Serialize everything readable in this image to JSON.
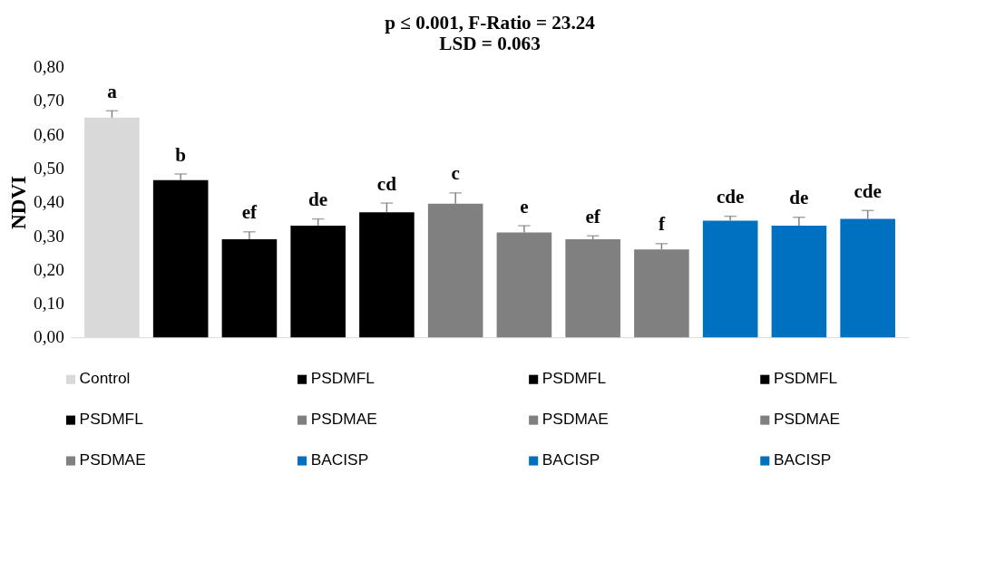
{
  "chart_data": {
    "type": "bar",
    "title": [
      "p ≤ 0.001, F-Ratio = 23.24",
      "LSD = 0.063"
    ],
    "ylabel": "NDVI",
    "categories": [
      null,
      null,
      null,
      null,
      null,
      null,
      null,
      null,
      null,
      null,
      null,
      null
    ],
    "series": [
      {
        "name": "Control",
        "color": "#d9d9d9",
        "values": [
          0.65,
          null,
          null,
          null,
          null,
          null,
          null,
          null,
          null,
          null,
          null,
          null
        ],
        "errors": [
          [
            0.65,
            0.67
          ],
          null,
          null,
          null,
          null,
          null,
          null,
          null,
          null,
          null,
          null,
          null
        ],
        "value_labels": [
          "a",
          null,
          null,
          null,
          null,
          null,
          null,
          null,
          null,
          null,
          null,
          null
        ]
      },
      {
        "name": "PSDMFL",
        "color": "#000000",
        "values": [
          null,
          0.465,
          null,
          null,
          null,
          null,
          null,
          null,
          null,
          null,
          null,
          null
        ],
        "errors": [
          null,
          [
            0.465,
            0.483
          ],
          null,
          null,
          null,
          null,
          null,
          null,
          null,
          null,
          null,
          null
        ],
        "value_labels": [
          null,
          "b",
          null,
          null,
          null,
          null,
          null,
          null,
          null,
          null,
          null,
          null
        ]
      },
      {
        "name": "PSDMFL",
        "color": "#000000",
        "values": [
          null,
          null,
          0.29,
          null,
          null,
          null,
          null,
          null,
          null,
          null,
          null,
          null
        ],
        "errors": [
          null,
          null,
          [
            0.29,
            0.312
          ],
          null,
          null,
          null,
          null,
          null,
          null,
          null,
          null,
          null
        ],
        "value_labels": [
          null,
          null,
          "ef",
          null,
          null,
          null,
          null,
          null,
          null,
          null,
          null,
          null
        ]
      },
      {
        "name": "PSDMFL",
        "color": "#000000",
        "values": [
          null,
          null,
          null,
          0.33,
          null,
          null,
          null,
          null,
          null,
          null,
          null,
          null
        ],
        "errors": [
          null,
          null,
          null,
          [
            0.33,
            0.35
          ],
          null,
          null,
          null,
          null,
          null,
          null,
          null,
          null
        ],
        "value_labels": [
          null,
          null,
          null,
          "de",
          null,
          null,
          null,
          null,
          null,
          null,
          null,
          null
        ]
      },
      {
        "name": "PSDMFL",
        "color": "#000000",
        "values": [
          null,
          null,
          null,
          null,
          0.37,
          null,
          null,
          null,
          null,
          null,
          null,
          null
        ],
        "errors": [
          null,
          null,
          null,
          null,
          [
            0.37,
            0.397
          ],
          null,
          null,
          null,
          null,
          null,
          null,
          null
        ],
        "value_labels": [
          null,
          null,
          null,
          null,
          "cd",
          null,
          null,
          null,
          null,
          null,
          null,
          null
        ]
      },
      {
        "name": "PSDMAE",
        "color": "#808080",
        "values": [
          null,
          null,
          null,
          null,
          null,
          0.395,
          null,
          null,
          null,
          null,
          null,
          null
        ],
        "errors": [
          null,
          null,
          null,
          null,
          null,
          [
            0.395,
            0.427
          ],
          null,
          null,
          null,
          null,
          null,
          null
        ],
        "value_labels": [
          null,
          null,
          null,
          null,
          null,
          "c",
          null,
          null,
          null,
          null,
          null,
          null
        ]
      },
      {
        "name": "PSDMAE",
        "color": "#808080",
        "values": [
          null,
          null,
          null,
          null,
          null,
          null,
          0.31,
          null,
          null,
          null,
          null,
          null
        ],
        "errors": [
          null,
          null,
          null,
          null,
          null,
          null,
          [
            0.31,
            0.33
          ],
          null,
          null,
          null,
          null,
          null
        ],
        "value_labels": [
          null,
          null,
          null,
          null,
          null,
          null,
          "e",
          null,
          null,
          null,
          null,
          null
        ]
      },
      {
        "name": "PSDMAE",
        "color": "#808080",
        "values": [
          null,
          null,
          null,
          null,
          null,
          null,
          null,
          0.29,
          null,
          null,
          null,
          null
        ],
        "errors": [
          null,
          null,
          null,
          null,
          null,
          null,
          null,
          [
            0.29,
            0.3
          ],
          null,
          null,
          null,
          null
        ],
        "value_labels": [
          null,
          null,
          null,
          null,
          null,
          null,
          null,
          "ef",
          null,
          null,
          null,
          null
        ]
      },
      {
        "name": "PSDMAE",
        "color": "#808080",
        "values": [
          null,
          null,
          null,
          null,
          null,
          null,
          null,
          null,
          0.26,
          null,
          null,
          null
        ],
        "errors": [
          null,
          null,
          null,
          null,
          null,
          null,
          null,
          null,
          [
            0.26,
            0.277
          ],
          null,
          null,
          null
        ],
        "value_labels": [
          null,
          null,
          null,
          null,
          null,
          null,
          null,
          null,
          "f",
          null,
          null,
          null
        ]
      },
      {
        "name": "BACISP",
        "color": "#0070c0",
        "values": [
          null,
          null,
          null,
          null,
          null,
          null,
          null,
          null,
          null,
          0.345,
          null,
          null
        ],
        "errors": [
          null,
          null,
          null,
          null,
          null,
          null,
          null,
          null,
          null,
          [
            0.345,
            0.358
          ],
          null,
          null
        ],
        "value_labels": [
          null,
          null,
          null,
          null,
          null,
          null,
          null,
          null,
          null,
          "cde",
          null,
          null
        ]
      },
      {
        "name": "BACISP",
        "color": "#0070c0",
        "values": [
          null,
          null,
          null,
          null,
          null,
          null,
          null,
          null,
          null,
          null,
          0.33,
          null
        ],
        "errors": [
          null,
          null,
          null,
          null,
          null,
          null,
          null,
          null,
          null,
          null,
          [
            0.33,
            0.355
          ],
          null
        ],
        "value_labels": [
          null,
          null,
          null,
          null,
          null,
          null,
          null,
          null,
          null,
          null,
          "de",
          null
        ]
      },
      {
        "name": "BACISP",
        "color": "#0070c0",
        "values": [
          null,
          null,
          null,
          null,
          null,
          null,
          null,
          null,
          null,
          null,
          null,
          0.35
        ],
        "errors": [
          null,
          null,
          null,
          null,
          null,
          null,
          null,
          null,
          null,
          null,
          null,
          [
            0.35,
            0.375
          ]
        ],
        "value_labels": [
          null,
          null,
          null,
          null,
          null,
          null,
          null,
          null,
          null,
          null,
          null,
          "cde"
        ]
      }
    ],
    "ylim": [
      0,
      0.8
    ],
    "yticks": [
      {
        "value": 0,
        "label": "0,00"
      },
      {
        "value": 0.1,
        "label": "0,10"
      },
      {
        "value": 0.2,
        "label": "0,20"
      },
      {
        "value": 0.3,
        "label": "0,30"
      },
      {
        "value": 0.4,
        "label": "0,40"
      },
      {
        "value": 0.5,
        "label": "0,50"
      },
      {
        "value": 0.6,
        "label": "0,60"
      },
      {
        "value": 0.7,
        "label": "0,70"
      },
      {
        "value": 0.8,
        "label": "0,80"
      }
    ],
    "tick_labels": "y",
    "grid": false,
    "legend": "bottom"
  }
}
